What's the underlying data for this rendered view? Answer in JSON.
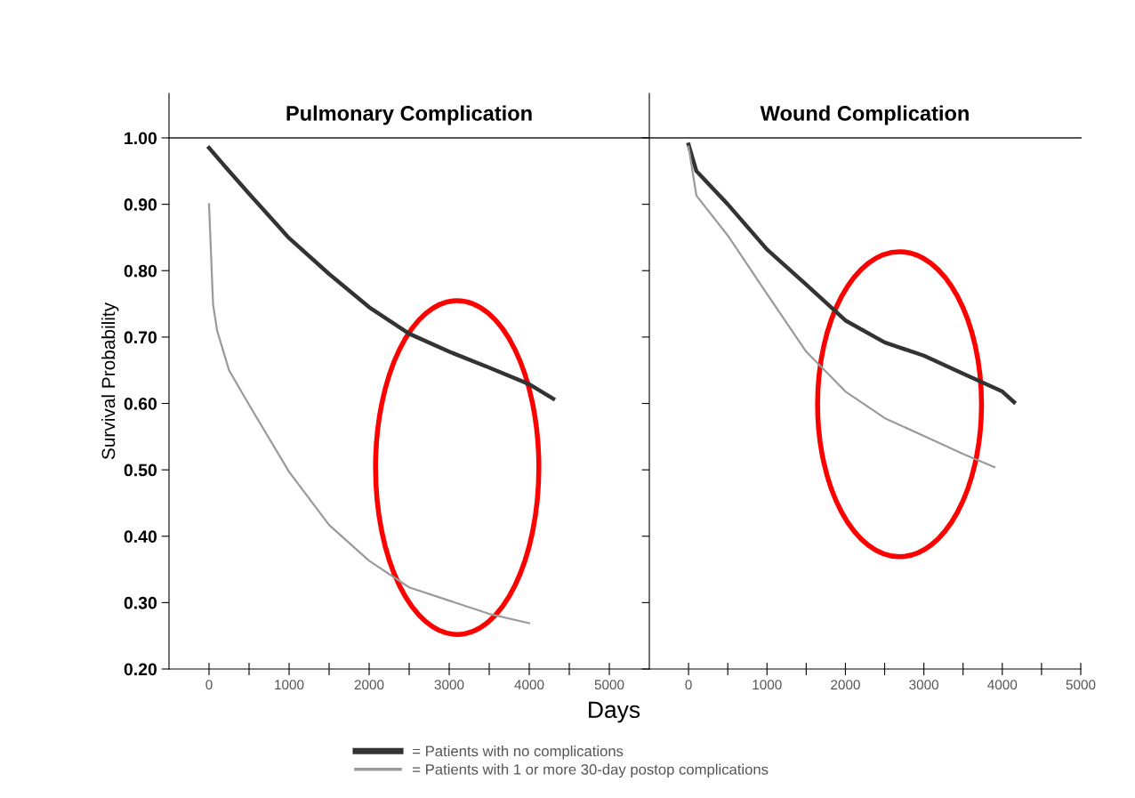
{
  "chart_data": [
    {
      "type": "line",
      "title": "Pulmonary Complication",
      "xlabel": "Days",
      "ylabel": "Survival Probability",
      "legend": "bottom",
      "xlim": [
        -500,
        5500
      ],
      "xticks": [
        0,
        {
          "value": 500,
          "label": null
        },
        1000,
        {
          "value": 1500,
          "label": null
        },
        2000,
        {
          "value": 2500,
          "label": null
        },
        3000,
        {
          "value": 3500,
          "label": null
        },
        4000,
        {
          "value": 4500,
          "label": null
        },
        5000
      ],
      "ylim": [
        0.2,
        1.067
      ],
      "yticks": [
        {
          "value": 0.2,
          "label": "0.20"
        },
        {
          "value": 0.3,
          "label": "0.30"
        },
        {
          "value": 0.4,
          "label": "0.40"
        },
        {
          "value": 0.5,
          "label": "0.50"
        },
        {
          "value": 0.6,
          "label": "0.60"
        },
        {
          "value": 0.7,
          "label": "0.70"
        },
        {
          "value": 0.8,
          "label": "0.80"
        },
        {
          "value": 0.9,
          "label": "0.90"
        },
        {
          "value": 1.0,
          "label": "1.00"
        }
      ],
      "ref_lines": [
        {
          "axis": "y",
          "value": 1.0,
          "color": "#555555"
        }
      ],
      "series": [
        {
          "name": "= Patients with no complications",
          "color": "#333333",
          "x": [
            0,
            250,
            500,
            1000,
            1500,
            2000,
            2500,
            3000,
            3500,
            4000,
            4300
          ],
          "values": [
            0.985,
            0.95,
            0.916,
            0.849,
            0.795,
            0.745,
            0.705,
            0.678,
            0.654,
            0.629,
            0.607
          ]
        },
        {
          "name": "= Patients with 1 or more 30-day postop complications",
          "color": "#9a9a9a",
          "x": [
            0,
            50,
            100,
            250,
            500,
            1000,
            1500,
            2000,
            2500,
            3000,
            3500,
            4000
          ],
          "values": [
            0.9,
            0.75,
            0.71,
            0.65,
            0.598,
            0.497,
            0.417,
            0.363,
            0.323,
            0.303,
            0.283,
            0.269
          ]
        }
      ]
    },
    {
      "type": "line",
      "title": "Wound Complication",
      "tick_labels": "x",
      "xlim": [
        -500,
        5000
      ],
      "xticks": [
        0,
        {
          "value": 500,
          "label": null
        },
        1000,
        {
          "value": 1500,
          "label": null
        },
        2000,
        {
          "value": 2500,
          "label": null
        },
        3000,
        {
          "value": 3500,
          "label": null
        },
        4000,
        {
          "value": 4500,
          "label": null
        },
        5000
      ],
      "ylim": [
        0.2,
        1.067
      ],
      "yticks": [
        {
          "value": 0.2,
          "label": null
        },
        {
          "value": 0.3,
          "label": null
        },
        {
          "value": 0.4,
          "label": null
        },
        {
          "value": 0.5,
          "label": null
        },
        {
          "value": 0.6,
          "label": null
        },
        {
          "value": 0.7,
          "label": null
        },
        {
          "value": 0.8,
          "label": null
        },
        {
          "value": 0.9,
          "label": null
        },
        {
          "value": 1.0,
          "label": null
        }
      ],
      "ref_lines": [
        {
          "axis": "y",
          "value": 1.0,
          "color": "#555555"
        }
      ],
      "series": [
        {
          "color": "#333333",
          "x": [
            0,
            100,
            500,
            1000,
            1500,
            2000,
            2500,
            3000,
            3500,
            4000,
            4150
          ],
          "values": [
            0.99,
            0.95,
            0.9,
            0.832,
            0.779,
            0.725,
            0.692,
            0.672,
            0.645,
            0.618,
            0.602
          ]
        },
        {
          "color": "#9a9a9a",
          "x": [
            0,
            100,
            500,
            1000,
            1500,
            2000,
            2500,
            3000,
            3500,
            3900
          ],
          "values": [
            0.987,
            0.913,
            0.853,
            0.765,
            0.678,
            0.618,
            0.578,
            0.551,
            0.524,
            0.504
          ]
        }
      ]
    }
  ]
}
